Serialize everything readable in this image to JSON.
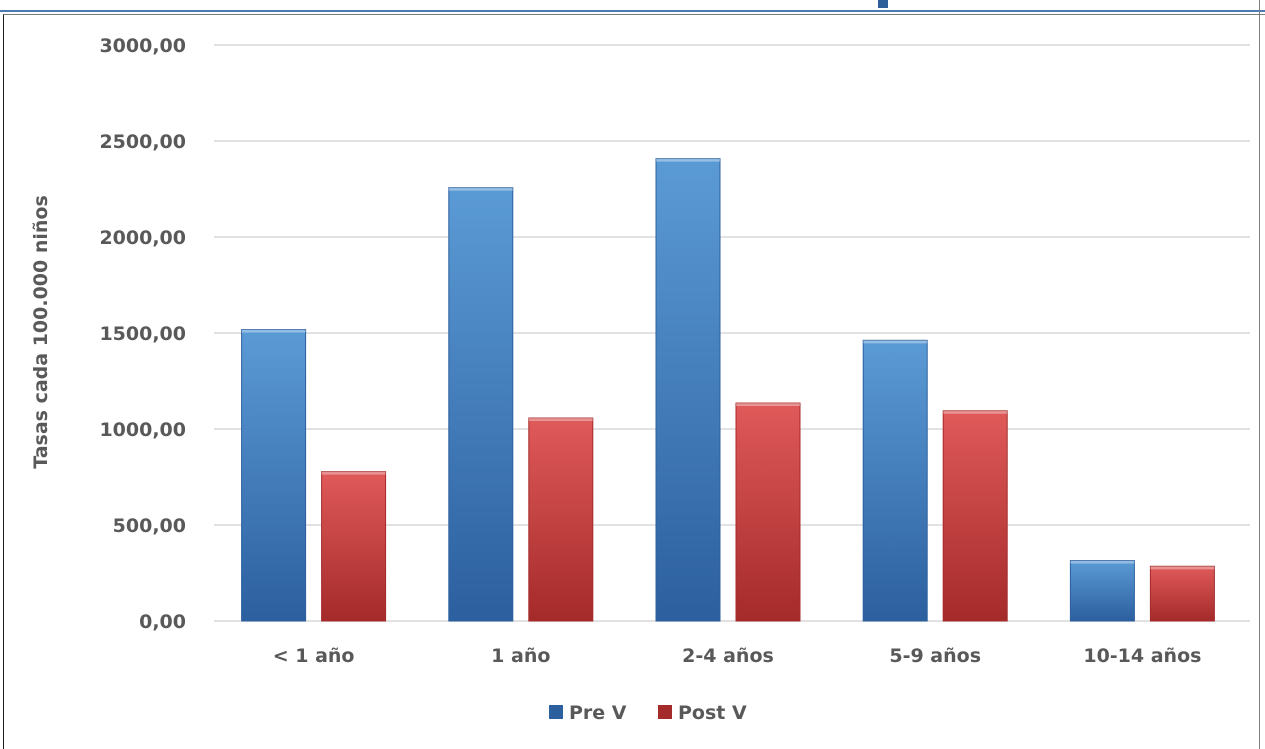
{
  "colors": {
    "pre_top": "#5b9bd5",
    "pre_bottom": "#2c5f9e",
    "post_top": "#e05a5a",
    "post_bottom": "#a52a2a",
    "grid": "#d9d9d9",
    "text": "#595959",
    "frame_accent": "#4a7bb5"
  },
  "chart_data": {
    "type": "bar",
    "title": "",
    "xlabel": "",
    "ylabel": "Tasas cada 100.000 niños",
    "categories": [
      "< 1 año",
      "1 año",
      "2-4 años",
      "5-9 años",
      "10-14 años"
    ],
    "series": [
      {
        "name": "Pre V",
        "values": [
          1518,
          2257,
          2408,
          1462,
          315
        ]
      },
      {
        "name": "Post V",
        "values": [
          778,
          1057,
          1135,
          1095,
          285
        ]
      }
    ],
    "ylim": [
      0,
      3000
    ],
    "yticks": [
      0,
      500,
      1000,
      1500,
      2000,
      2500,
      3000
    ],
    "ytick_labels": [
      "0,00",
      "500,00",
      "1000,00",
      "1500,00",
      "2000,00",
      "2500,00",
      "3000,00"
    ],
    "grid": true,
    "legend": "bottom-center"
  }
}
